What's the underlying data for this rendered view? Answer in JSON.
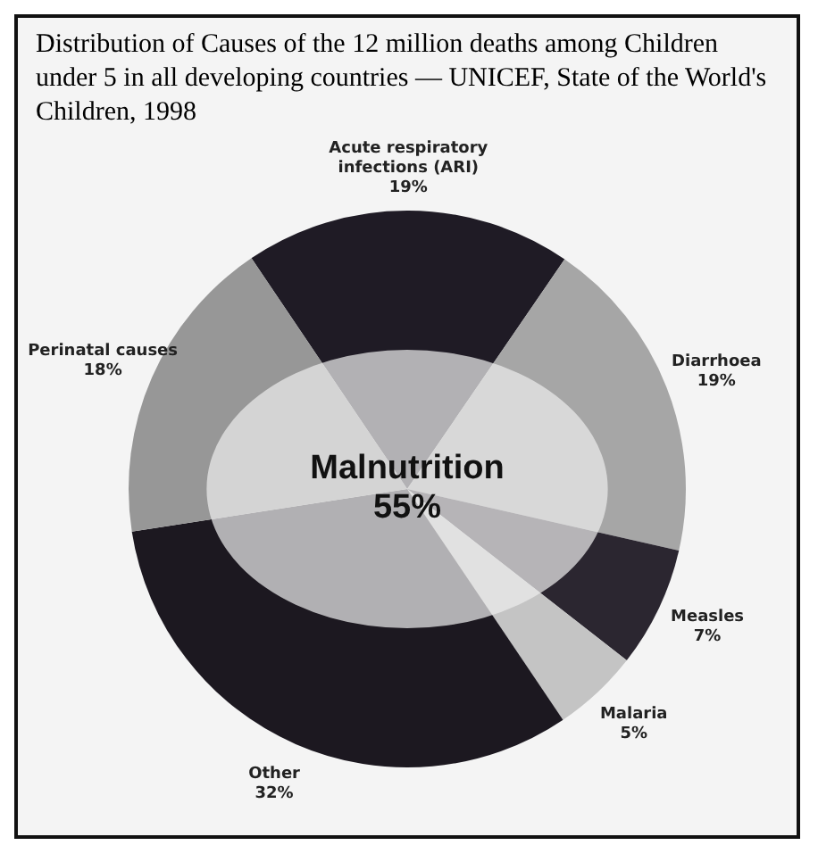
{
  "chart_data": {
    "type": "pie",
    "title": "Distribution of Causes of the 12 million deaths among Children under 5 in all developing countries — UNICEF, State of the World's Children, 1998",
    "categories": [
      "Acute respiratory infections (ARI)",
      "Diarrhoea",
      "Measles",
      "Malaria",
      "Other",
      "Perinatal causes"
    ],
    "values": [
      19,
      19,
      7,
      5,
      32,
      18
    ],
    "value_labels": [
      "19%",
      "19%",
      "7%",
      "5%",
      "32%",
      "18%"
    ],
    "colors": [
      "#1f1b25",
      "#a6a6a6",
      "#2b2630",
      "#c4c4c4",
      "#1c1820",
      "#979797"
    ],
    "annotations": [
      "Malnutrition",
      "55%"
    ],
    "legend": false
  }
}
